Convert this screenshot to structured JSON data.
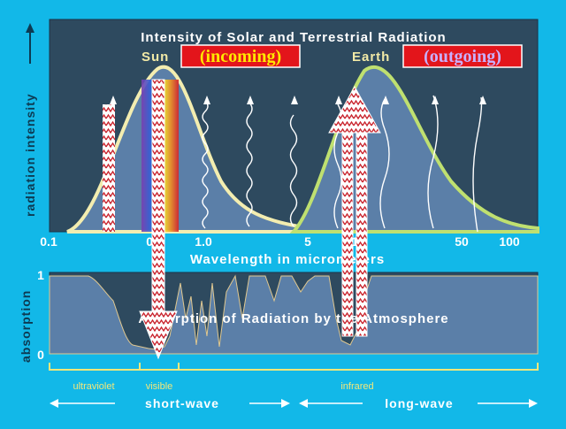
{
  "top_title": "Intensity of Solar and Terrestrial Radiation",
  "sun_label": "Sun",
  "sun_tag": "(incoming)",
  "earth_label": "Earth",
  "earth_tag": "(outgoing)",
  "y_label_top": "radiation intensity",
  "y_label_bottom": "absorption",
  "x_label": "Wavelength in micrometers",
  "ticks": [
    "0.1",
    "0.5",
    "1.0",
    "5",
    "10",
    "50",
    "100"
  ],
  "absorption_ticks": [
    "1",
    "0"
  ],
  "bottom_title": "Absorption of Radiation by the Atmosphere",
  "bands": {
    "ultraviolet": "ultraviolet",
    "visible": "visible",
    "infrared": "infrared"
  },
  "short_wave": "short-wave",
  "long_wave": "long-wave",
  "colors": {
    "background": "#12b8e8",
    "panel": "#2e4a5f",
    "sun_curve": "#f3edb0",
    "earth_curve": "#bfe070",
    "tag_fill": "#e3151b",
    "sun_tag_text": "#ffe800",
    "earth_tag_text": "#c9b0ff"
  }
}
